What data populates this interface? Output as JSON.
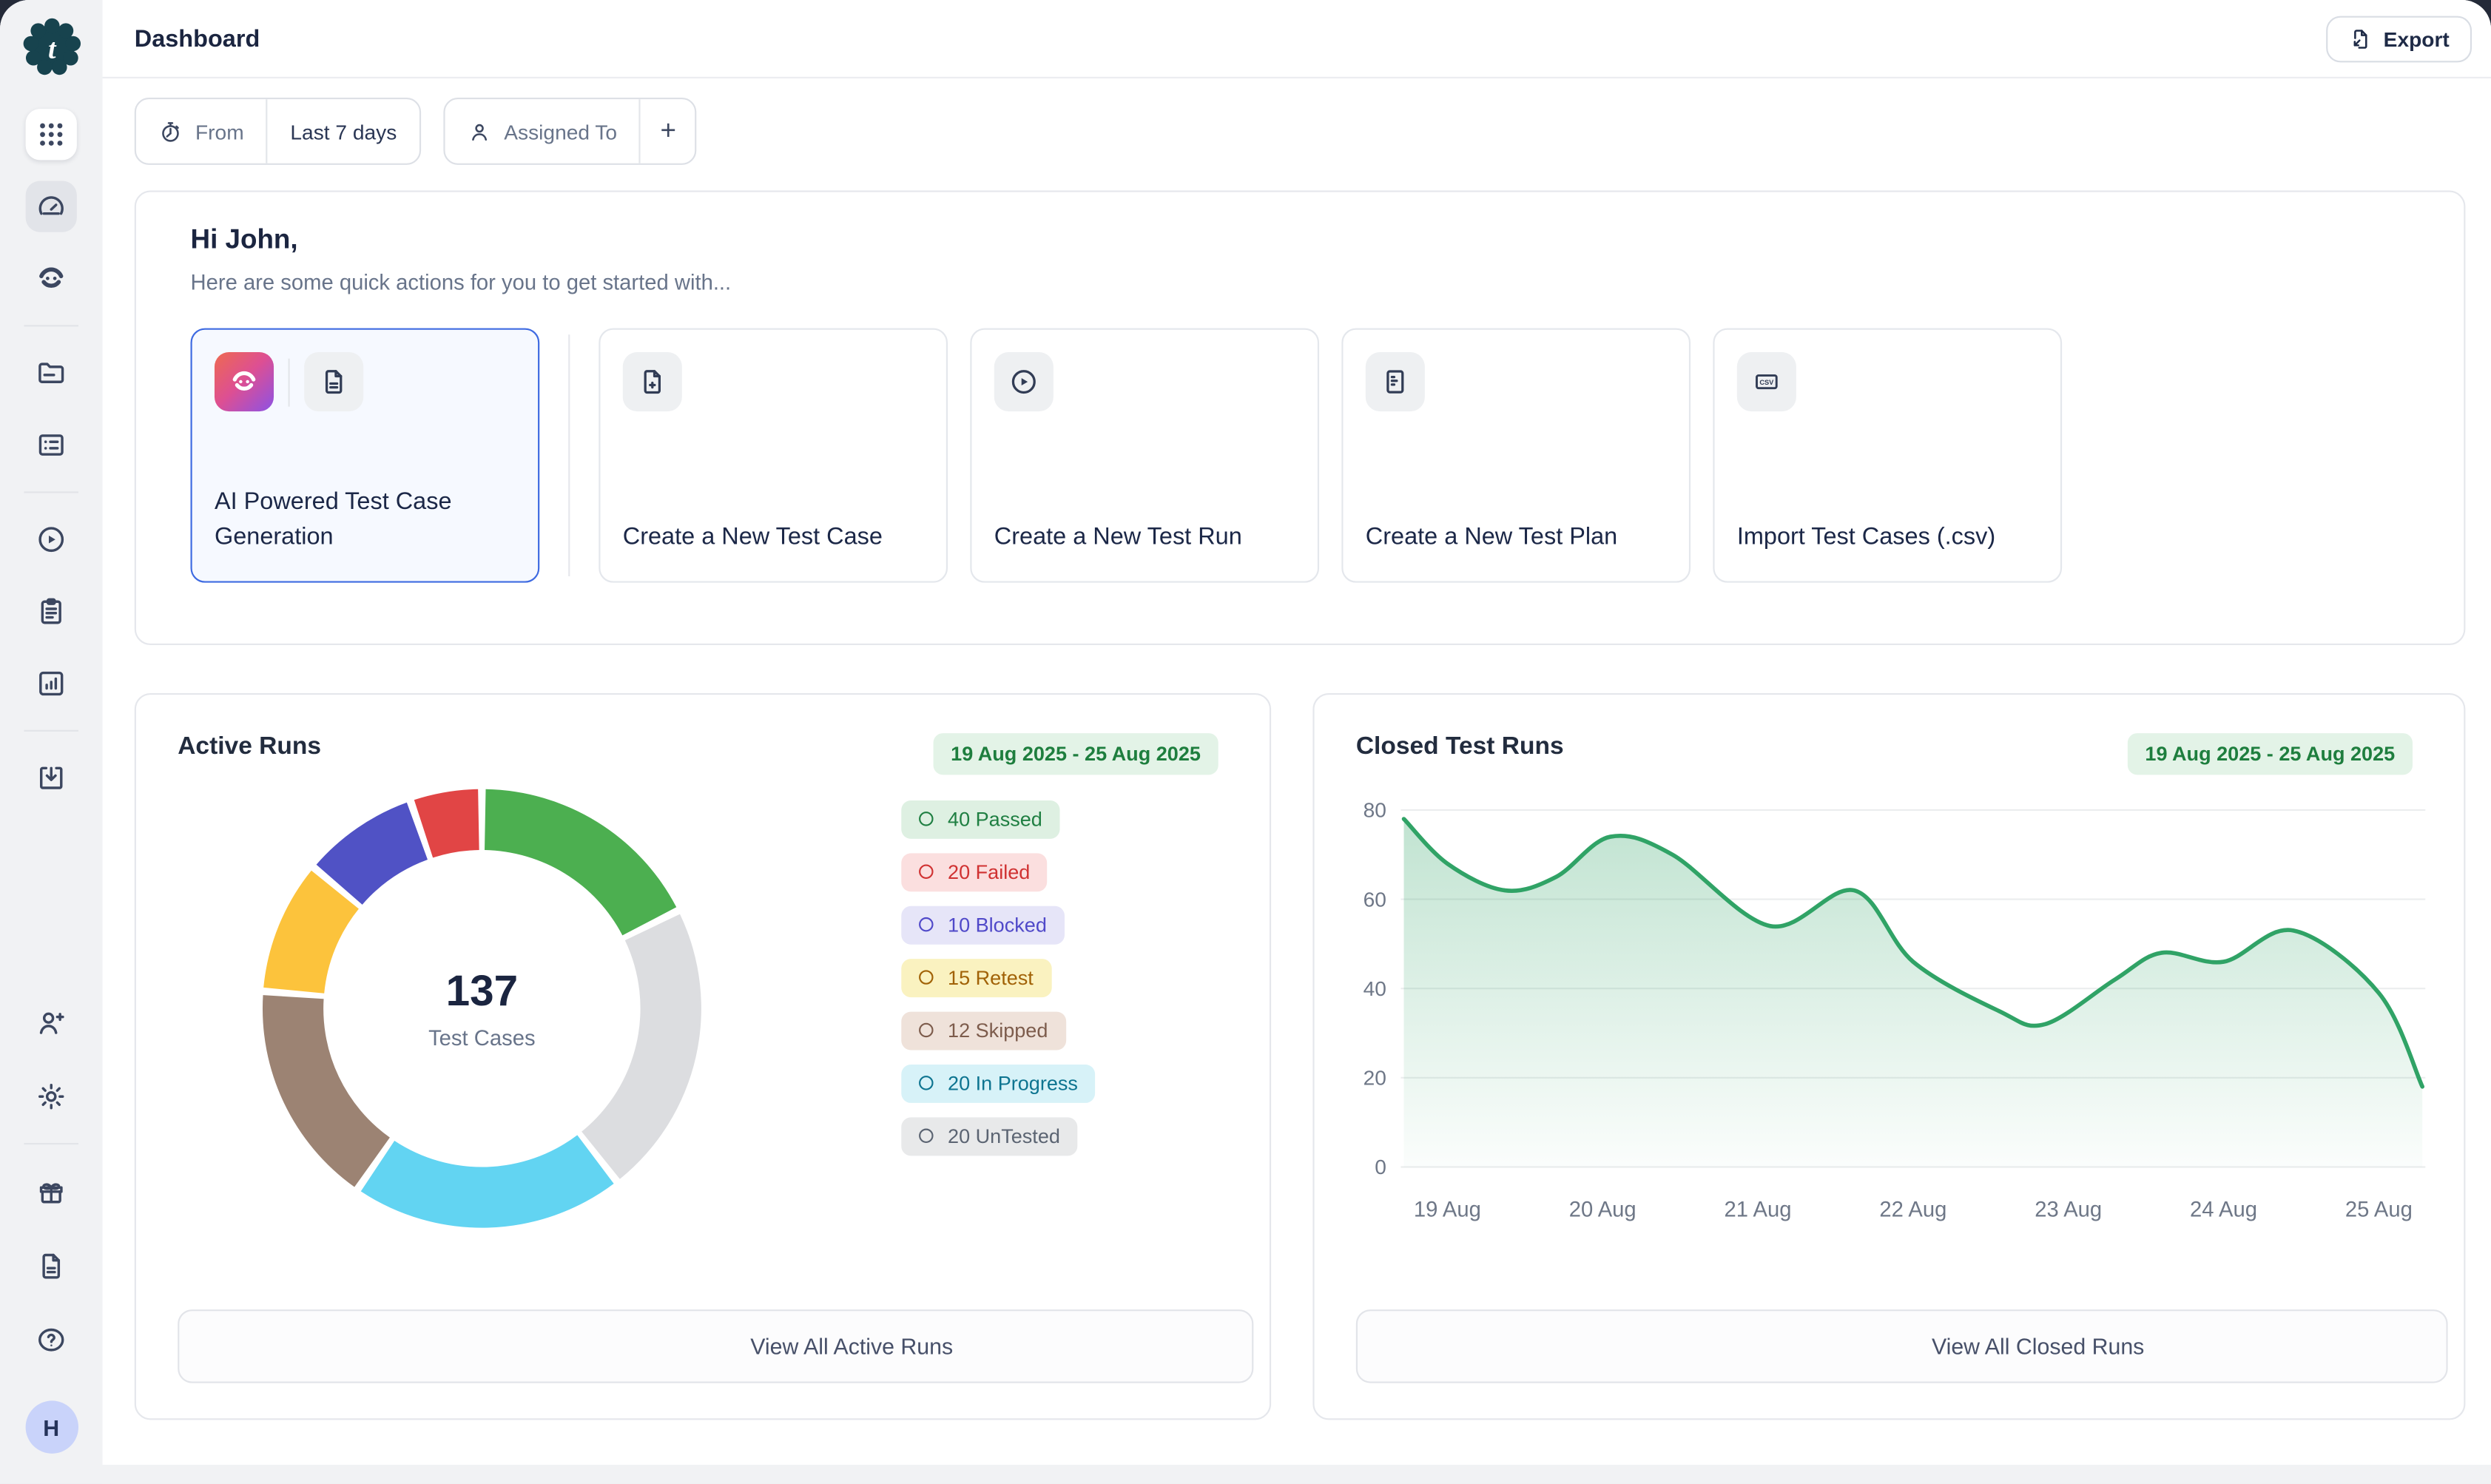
{
  "app": {
    "title": "Dashboard",
    "export_label": "Export",
    "avatar_initial": "H"
  },
  "sidebar": {
    "top_items": [
      {
        "type": "item",
        "icon": "apps-grid",
        "style": "card"
      },
      {
        "type": "item",
        "icon": "dashboard-gauge",
        "active": true
      },
      {
        "type": "item",
        "icon": "robot"
      },
      {
        "type": "divider"
      },
      {
        "type": "item",
        "icon": "folder"
      },
      {
        "type": "item",
        "icon": "checklist-card"
      },
      {
        "type": "divider"
      },
      {
        "type": "item",
        "icon": "play-circle"
      },
      {
        "type": "item",
        "icon": "clipboard"
      },
      {
        "type": "item",
        "icon": "bar-chart"
      },
      {
        "type": "divider"
      },
      {
        "type": "item",
        "icon": "import-tray"
      }
    ],
    "bottom_items": [
      {
        "type": "item",
        "icon": "user-plus"
      },
      {
        "type": "item",
        "icon": "gear"
      },
      {
        "type": "divider"
      },
      {
        "type": "item",
        "icon": "gift"
      },
      {
        "type": "item",
        "icon": "file"
      },
      {
        "type": "item",
        "icon": "help-circle"
      }
    ]
  },
  "filters": {
    "from_label": "From",
    "from_value": "Last 7 days",
    "assigned_label": "Assigned To",
    "add_label": "+"
  },
  "welcome": {
    "greeting": "Hi John,",
    "subtitle": "Here are some quick actions for you to get started with..."
  },
  "quick_actions": [
    {
      "label": "AI Powered Test Case Generation",
      "highlighted": true,
      "chips": [
        {
          "icon": "robot",
          "gradient": true
        },
        {
          "icon": "file"
        }
      ],
      "divider_after": true
    },
    {
      "label": "Create a New Test Case",
      "chips": [
        {
          "icon": "file-plus"
        }
      ]
    },
    {
      "label": "Create a New Test Run",
      "chips": [
        {
          "icon": "play-circle"
        }
      ]
    },
    {
      "label": "Create a New Test Plan",
      "chips": [
        {
          "icon": "test-plan"
        }
      ]
    },
    {
      "label": "Import Test Cases (.csv)",
      "chips": [
        {
          "icon": "csv"
        }
      ]
    }
  ],
  "active_runs": {
    "title": "Active Runs",
    "date_range": "19 Aug 2025 - 25 Aug 2025",
    "center_value": "137",
    "center_label": "Test Cases",
    "view_all_label": "View All Active Runs",
    "legend": [
      {
        "badge": "40 Passed",
        "count": 40,
        "label": "Passed",
        "text_color": "#1f7f42",
        "bg_color": "#def0e2"
      },
      {
        "badge": "20 Failed",
        "count": 20,
        "label": "Failed",
        "text_color": "#d03232",
        "bg_color": "#fbdfdf"
      },
      {
        "badge": "10 Blocked",
        "count": 10,
        "label": "Blocked",
        "text_color": "#5049c9",
        "bg_color": "#e6e5f8"
      },
      {
        "badge": "15 Retest",
        "count": 15,
        "label": "Retest",
        "text_color": "#a16207",
        "bg_color": "#faf2c0"
      },
      {
        "badge": "12 Skipped",
        "count": 12,
        "label": "Skipped",
        "text_color": "#7d5c4c",
        "bg_color": "#efe2da"
      },
      {
        "badge": "20 In Progress",
        "count": 20,
        "label": "In Progress",
        "text_color": "#0d7490",
        "bg_color": "#d7f2f8"
      },
      {
        "badge": "20 UnTested",
        "count": 20,
        "label": "UnTested",
        "text_color": "#5b6472",
        "bg_color": "#e8e9ea"
      }
    ]
  },
  "closed_runs": {
    "title": "Closed Test Runs",
    "date_range": "19 Aug 2025 - 25 Aug 2025",
    "view_all_label": "View All Closed Runs"
  },
  "chart_data": [
    {
      "type": "pie",
      "title": "Active Runs",
      "center_total": 137,
      "center_label": "Test Cases",
      "legend_position": "right",
      "segments": [
        {
          "label": "Passed",
          "value": 40,
          "color": "#4caf50",
          "arc_deg": 63.5
        },
        {
          "label": "UnTested",
          "value": 20,
          "color": "#dcdde0",
          "arc_deg": 78.5
        },
        {
          "label": "In Progress",
          "value": 20,
          "color": "#62d4f2",
          "arc_deg": 72.5
        },
        {
          "label": "Skipped",
          "value": 12,
          "color": "#9c8373",
          "arc_deg": 60
        },
        {
          "label": "Retest",
          "value": 15,
          "color": "#fcc33c",
          "arc_deg": 35.5
        },
        {
          "label": "Blocked",
          "value": 10,
          "color": "#5052c5",
          "arc_deg": 31
        },
        {
          "label": "Failed",
          "value": 20,
          "color": "#e14545",
          "arc_deg": 19
        }
      ]
    },
    {
      "type": "area",
      "title": "Closed Test Runs",
      "x_ticks": [
        "19 Aug",
        "20 Aug",
        "21 Aug",
        "22 Aug",
        "23 Aug",
        "24 Aug",
        "25 Aug"
      ],
      "y_ticks": [
        0,
        20,
        40,
        60,
        80
      ],
      "ylim": [
        0,
        80
      ],
      "grid": "horizontal",
      "line_color": "#30a366",
      "points": [
        [
          -0.28,
          78
        ],
        [
          0,
          68
        ],
        [
          0.37,
          62
        ],
        [
          0.7,
          65
        ],
        [
          1.05,
          74
        ],
        [
          1.45,
          70
        ],
        [
          2.08,
          54
        ],
        [
          2.62,
          62
        ],
        [
          3.0,
          46
        ],
        [
          3.55,
          35
        ],
        [
          3.85,
          32
        ],
        [
          4.3,
          42
        ],
        [
          4.6,
          48
        ],
        [
          5.0,
          46
        ],
        [
          5.45,
          53
        ],
        [
          6.0,
          39
        ],
        [
          6.28,
          18
        ]
      ]
    }
  ]
}
